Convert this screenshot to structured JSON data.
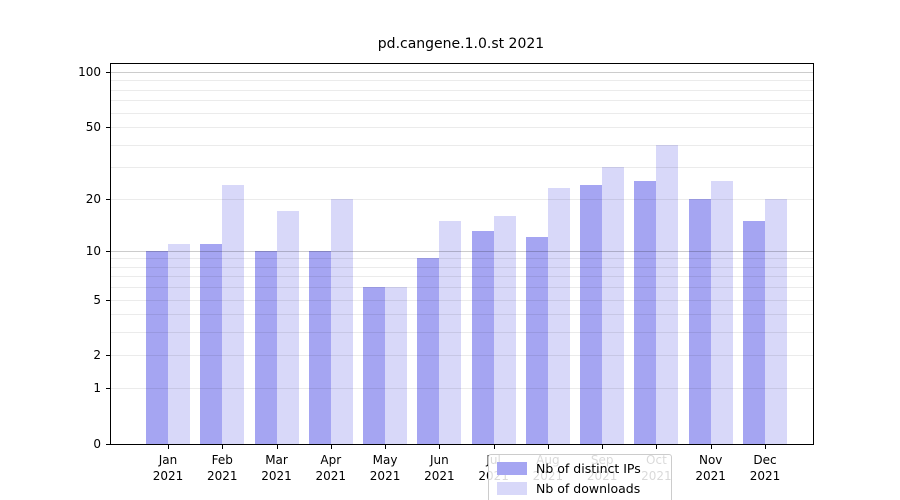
{
  "chart_data": {
    "type": "bar",
    "title": "pd.cangene.1.0.st 2021",
    "categories": [
      "Jan",
      "Feb",
      "Mar",
      "Apr",
      "May",
      "Jun",
      "Jul",
      "Aug",
      "Sep",
      "Oct",
      "Nov",
      "Dec"
    ],
    "category_year": "2021",
    "series": [
      {
        "name": "Nb of distinct IPs",
        "color": "#a5a5f2",
        "values": [
          10,
          11,
          10,
          10,
          6,
          9,
          13,
          12,
          24,
          25,
          20,
          15
        ]
      },
      {
        "name": "Nb of downloads",
        "color": "#d8d8f9",
        "values": [
          11,
          24,
          17,
          20,
          6,
          15,
          16,
          23,
          30,
          40,
          25,
          20
        ]
      }
    ],
    "yscale": "log10(1+x)",
    "ylim": [
      0,
      100
    ],
    "yticks": [
      0,
      1,
      2,
      5,
      10,
      20,
      50,
      100
    ],
    "minor_gridlines": [
      1,
      2,
      3,
      4,
      5,
      6,
      7,
      8,
      9,
      20,
      30,
      40,
      50,
      60,
      70,
      80,
      90
    ],
    "major_gridlines": [
      10,
      100
    ],
    "grid": true,
    "legend_position": "bottom-center"
  }
}
